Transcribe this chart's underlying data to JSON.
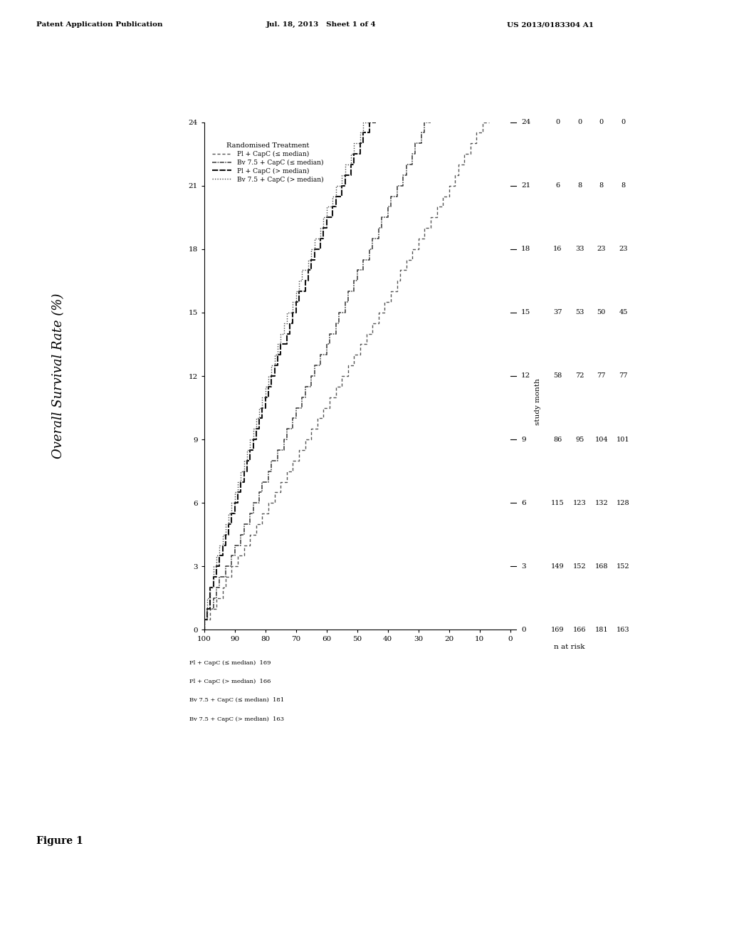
{
  "title": "Overall Survival Rate (%)",
  "xlabel_rotated": "study month",
  "xlim": [
    0,
    100
  ],
  "ylim": [
    0,
    24
  ],
  "xticks": [
    0,
    10,
    20,
    30,
    40,
    50,
    60,
    70,
    80,
    90,
    100
  ],
  "yticks": [
    0,
    3,
    6,
    9,
    12,
    15,
    18,
    21,
    24
  ],
  "legend_title": "Randomised Treatment",
  "curves": [
    {
      "label": "Pl + CapC (≤ median)",
      "linestyle_key": "dash_fine",
      "color": "#555555",
      "surv": [
        100,
        98,
        96,
        94,
        93,
        91,
        89,
        87,
        85,
        83,
        81,
        79,
        77,
        75,
        73,
        71,
        69,
        67,
        65,
        63,
        61,
        59,
        57,
        55,
        53,
        51,
        49,
        47,
        45,
        43,
        41,
        39,
        37,
        36,
        34,
        32,
        30,
        28,
        26,
        24,
        22,
        20,
        18,
        17,
        15,
        13,
        11,
        9,
        7
      ],
      "month": [
        0,
        0.5,
        1,
        1.5,
        2,
        2.5,
        3,
        3.5,
        4,
        4.5,
        5,
        5.5,
        6,
        6.5,
        7,
        7.5,
        8,
        8.5,
        9,
        9.5,
        10,
        10.5,
        11,
        11.5,
        12,
        12.5,
        13,
        13.5,
        14,
        14.5,
        15,
        15.5,
        16,
        16.5,
        17,
        17.5,
        18,
        18.5,
        19,
        19.5,
        20,
        20.5,
        21,
        21.5,
        22,
        22.5,
        23,
        23.5,
        24
      ]
    },
    {
      "label": "Bv 7.5 + CapC (≤ median)",
      "linestyle_key": "dash_dot",
      "color": "#333333",
      "surv": [
        100,
        99,
        97,
        96,
        95,
        93,
        91,
        90,
        88,
        87,
        85,
        84,
        82,
        81,
        79,
        78,
        76,
        74,
        73,
        71,
        70,
        68,
        67,
        65,
        64,
        62,
        60,
        59,
        57,
        56,
        54,
        53,
        51,
        50,
        48,
        46,
        45,
        43,
        42,
        40,
        39,
        37,
        35,
        34,
        32,
        31,
        29,
        28,
        26
      ],
      "month": [
        0,
        0.5,
        1,
        1.5,
        2,
        2.5,
        3,
        3.5,
        4,
        4.5,
        5,
        5.5,
        6,
        6.5,
        7,
        7.5,
        8,
        8.5,
        9,
        9.5,
        10,
        10.5,
        11,
        11.5,
        12,
        12.5,
        13,
        13.5,
        14,
        14.5,
        15,
        15.5,
        16,
        16.5,
        17,
        17.5,
        18,
        18.5,
        19,
        19.5,
        20,
        20.5,
        21,
        21.5,
        22,
        22.5,
        23,
        23.5,
        24
      ]
    },
    {
      "label": "Pl + CapC (> median)",
      "linestyle_key": "dash_heavy",
      "color": "#111111",
      "surv": [
        100,
        99,
        98,
        98,
        97,
        96,
        95,
        94,
        93,
        92,
        91,
        90,
        89,
        88,
        87,
        86,
        85,
        84,
        83,
        82,
        81,
        80,
        79,
        78,
        77,
        76,
        75,
        73,
        72,
        71,
        70,
        69,
        67,
        66,
        65,
        64,
        62,
        61,
        60,
        58,
        57,
        55,
        54,
        52,
        51,
        49,
        48,
        46,
        44
      ],
      "month": [
        0,
        0.5,
        1,
        1.5,
        2,
        2.5,
        3,
        3.5,
        4,
        4.5,
        5,
        5.5,
        6,
        6.5,
        7,
        7.5,
        8,
        8.5,
        9,
        9.5,
        10,
        10.5,
        11,
        11.5,
        12,
        12.5,
        13,
        13.5,
        14,
        14.5,
        15,
        15.5,
        16,
        16.5,
        17,
        17.5,
        18,
        18.5,
        19,
        19.5,
        20,
        20.5,
        21,
        21.5,
        22,
        22.5,
        23,
        23.5,
        24
      ]
    },
    {
      "label": "Bv 7.5 + CapC (> median)",
      "linestyle_key": "dotted",
      "color": "#444444",
      "surv": [
        100,
        99,
        99,
        98,
        97,
        97,
        96,
        95,
        94,
        93,
        92,
        91,
        90,
        89,
        88,
        87,
        86,
        85,
        84,
        83,
        82,
        81,
        80,
        79,
        78,
        77,
        76,
        75,
        74,
        73,
        71,
        70,
        69,
        68,
        66,
        65,
        64,
        62,
        61,
        60,
        58,
        57,
        55,
        54,
        52,
        51,
        49,
        48,
        46
      ],
      "month": [
        0,
        0.5,
        1,
        1.5,
        2,
        2.5,
        3,
        3.5,
        4,
        4.5,
        5,
        5.5,
        6,
        6.5,
        7,
        7.5,
        8,
        8.5,
        9,
        9.5,
        10,
        10.5,
        11,
        11.5,
        12,
        12.5,
        13,
        13.5,
        14,
        14.5,
        15,
        15.5,
        16,
        16.5,
        17,
        17.5,
        18,
        18.5,
        19,
        19.5,
        20,
        20.5,
        21,
        21.5,
        22,
        22.5,
        23,
        23.5,
        24
      ]
    }
  ],
  "n_at_risk_months": [
    0,
    3,
    6,
    9,
    12,
    15,
    18,
    21,
    24
  ],
  "n_at_risk_rows": [
    [
      169,
      149,
      115,
      86,
      58,
      37,
      16,
      6,
      0
    ],
    [
      166,
      152,
      123,
      95,
      72,
      53,
      33,
      8,
      0
    ],
    [
      181,
      168,
      132,
      104,
      77,
      50,
      23,
      8,
      0
    ],
    [
      163,
      152,
      128,
      101,
      77,
      45,
      23,
      8,
      0
    ]
  ],
  "n_at_risk_label": "n at risk",
  "n_at_risk_row_labels": [
    "Pl + CapC (≤ median)  169",
    "Pl + CapC (> median)  166",
    "Bv 7.5 + CapC (≤ median)  181",
    "Bv 7.5 + CapC (> median)  163"
  ],
  "header_left": "Patent Application Publication",
  "header_mid": "Jul. 18, 2013   Sheet 1 of 4",
  "header_right": "US 2013/0183304 A1",
  "figure_label": "Figure 1",
  "background_color": "#ffffff"
}
